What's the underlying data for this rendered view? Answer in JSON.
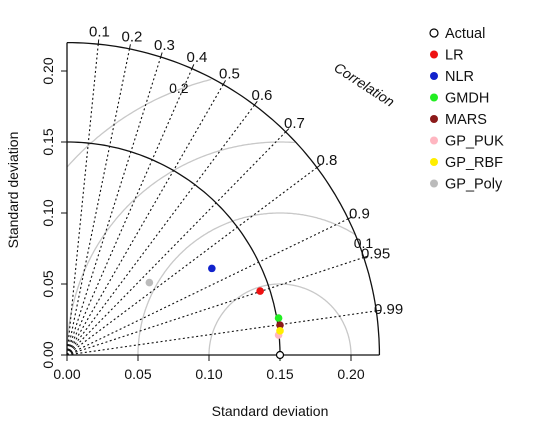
{
  "chart_data": {
    "type": "scatter",
    "subtype": "taylor-diagram",
    "title": "",
    "xlabel": "Standard deviation",
    "ylabel": "Standard deviation",
    "correlation_label": "Correlation",
    "xlim": [
      0,
      0.22
    ],
    "ylim": [
      0,
      0.22
    ],
    "x_ticks": [
      "0.00",
      "0.05",
      "0.10",
      "0.15",
      "0.20"
    ],
    "y_ticks": [
      "0.00",
      "0.05",
      "0.10",
      "0.15",
      "0.20"
    ],
    "reference_sd": 0.15,
    "correlation_ticks": [
      "0.1",
      "0.2",
      "0.3",
      "0.4",
      "0.5",
      "0.6",
      "0.7",
      "0.8",
      "0.9",
      "0.95",
      "0.99"
    ],
    "correlation_lines": [
      0.1,
      0.2,
      0.3,
      0.4,
      0.5,
      0.6,
      0.7,
      0.8,
      0.9,
      0.95,
      0.99
    ],
    "rms_contours": [
      {
        "radius": 0.05,
        "label": ""
      },
      {
        "radius": 0.1,
        "label": "0.1"
      },
      {
        "radius": 0.15,
        "label": ""
      },
      {
        "radius": 0.2,
        "label": "0.2"
      }
    ],
    "legend_position": "right",
    "series": [
      {
        "name": "Actual",
        "color": "#000000",
        "marker": "open-circle",
        "x": 0.15,
        "y": 0.0
      },
      {
        "name": "LR",
        "color": "#ee1111",
        "marker": "dot",
        "x": 0.136,
        "y": 0.045
      },
      {
        "name": "NLR",
        "color": "#1122cc",
        "marker": "dot",
        "x": 0.102,
        "y": 0.061
      },
      {
        "name": "GMDH",
        "color": "#22ee22",
        "marker": "dot",
        "x": 0.149,
        "y": 0.026
      },
      {
        "name": "MARS",
        "color": "#8b1a1a",
        "marker": "dot",
        "x": 0.15,
        "y": 0.021
      },
      {
        "name": "GP_PUK",
        "color": "#ffb6c1",
        "marker": "dot",
        "x": 0.149,
        "y": 0.014
      },
      {
        "name": "GP_RBF",
        "color": "#ffee00",
        "marker": "dot",
        "x": 0.15,
        "y": 0.017
      },
      {
        "name": "GP_Poly",
        "color": "#bbbbbb",
        "marker": "dot",
        "x": 0.058,
        "y": 0.051
      }
    ]
  }
}
